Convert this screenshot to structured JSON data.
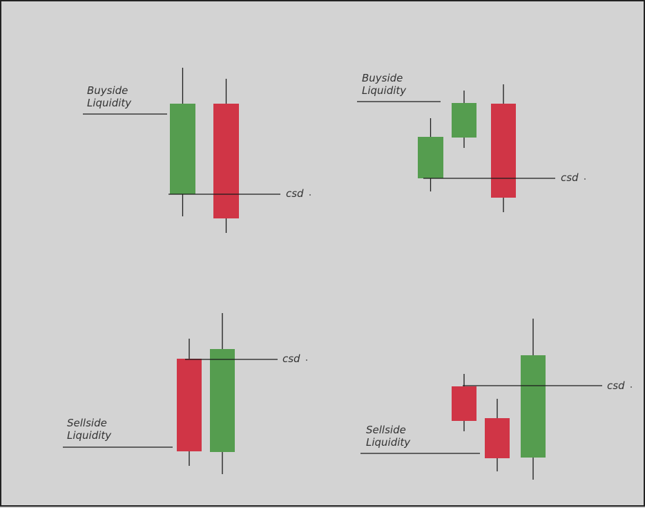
{
  "colors": {
    "background": "#d3d3d3",
    "bullish": "#559d4f",
    "bearish": "#d03546",
    "line": "#1a1a1a",
    "text": "#333333"
  },
  "panels": [
    {
      "id": "top-left",
      "liquidity_label_lines": [
        "Buyside",
        "Liquidity"
      ],
      "csd_label": "csd",
      "candles": [
        {
          "direction": "bullish"
        },
        {
          "direction": "bearish"
        }
      ]
    },
    {
      "id": "top-right",
      "liquidity_label_lines": [
        "Buyside",
        "Liquidity"
      ],
      "csd_label": "csd",
      "candles": [
        {
          "direction": "bullish"
        },
        {
          "direction": "bullish"
        },
        {
          "direction": "bearish"
        }
      ]
    },
    {
      "id": "bottom-left",
      "liquidity_label_lines": [
        "Sellside",
        "Liquidity"
      ],
      "csd_label": "csd",
      "candles": [
        {
          "direction": "bearish"
        },
        {
          "direction": "bullish"
        }
      ]
    },
    {
      "id": "bottom-right",
      "liquidity_label_lines": [
        "Sellside",
        "Liquidity"
      ],
      "csd_label": "csd",
      "candles": [
        {
          "direction": "bearish"
        },
        {
          "direction": "bearish"
        },
        {
          "direction": "bullish"
        }
      ]
    }
  ]
}
